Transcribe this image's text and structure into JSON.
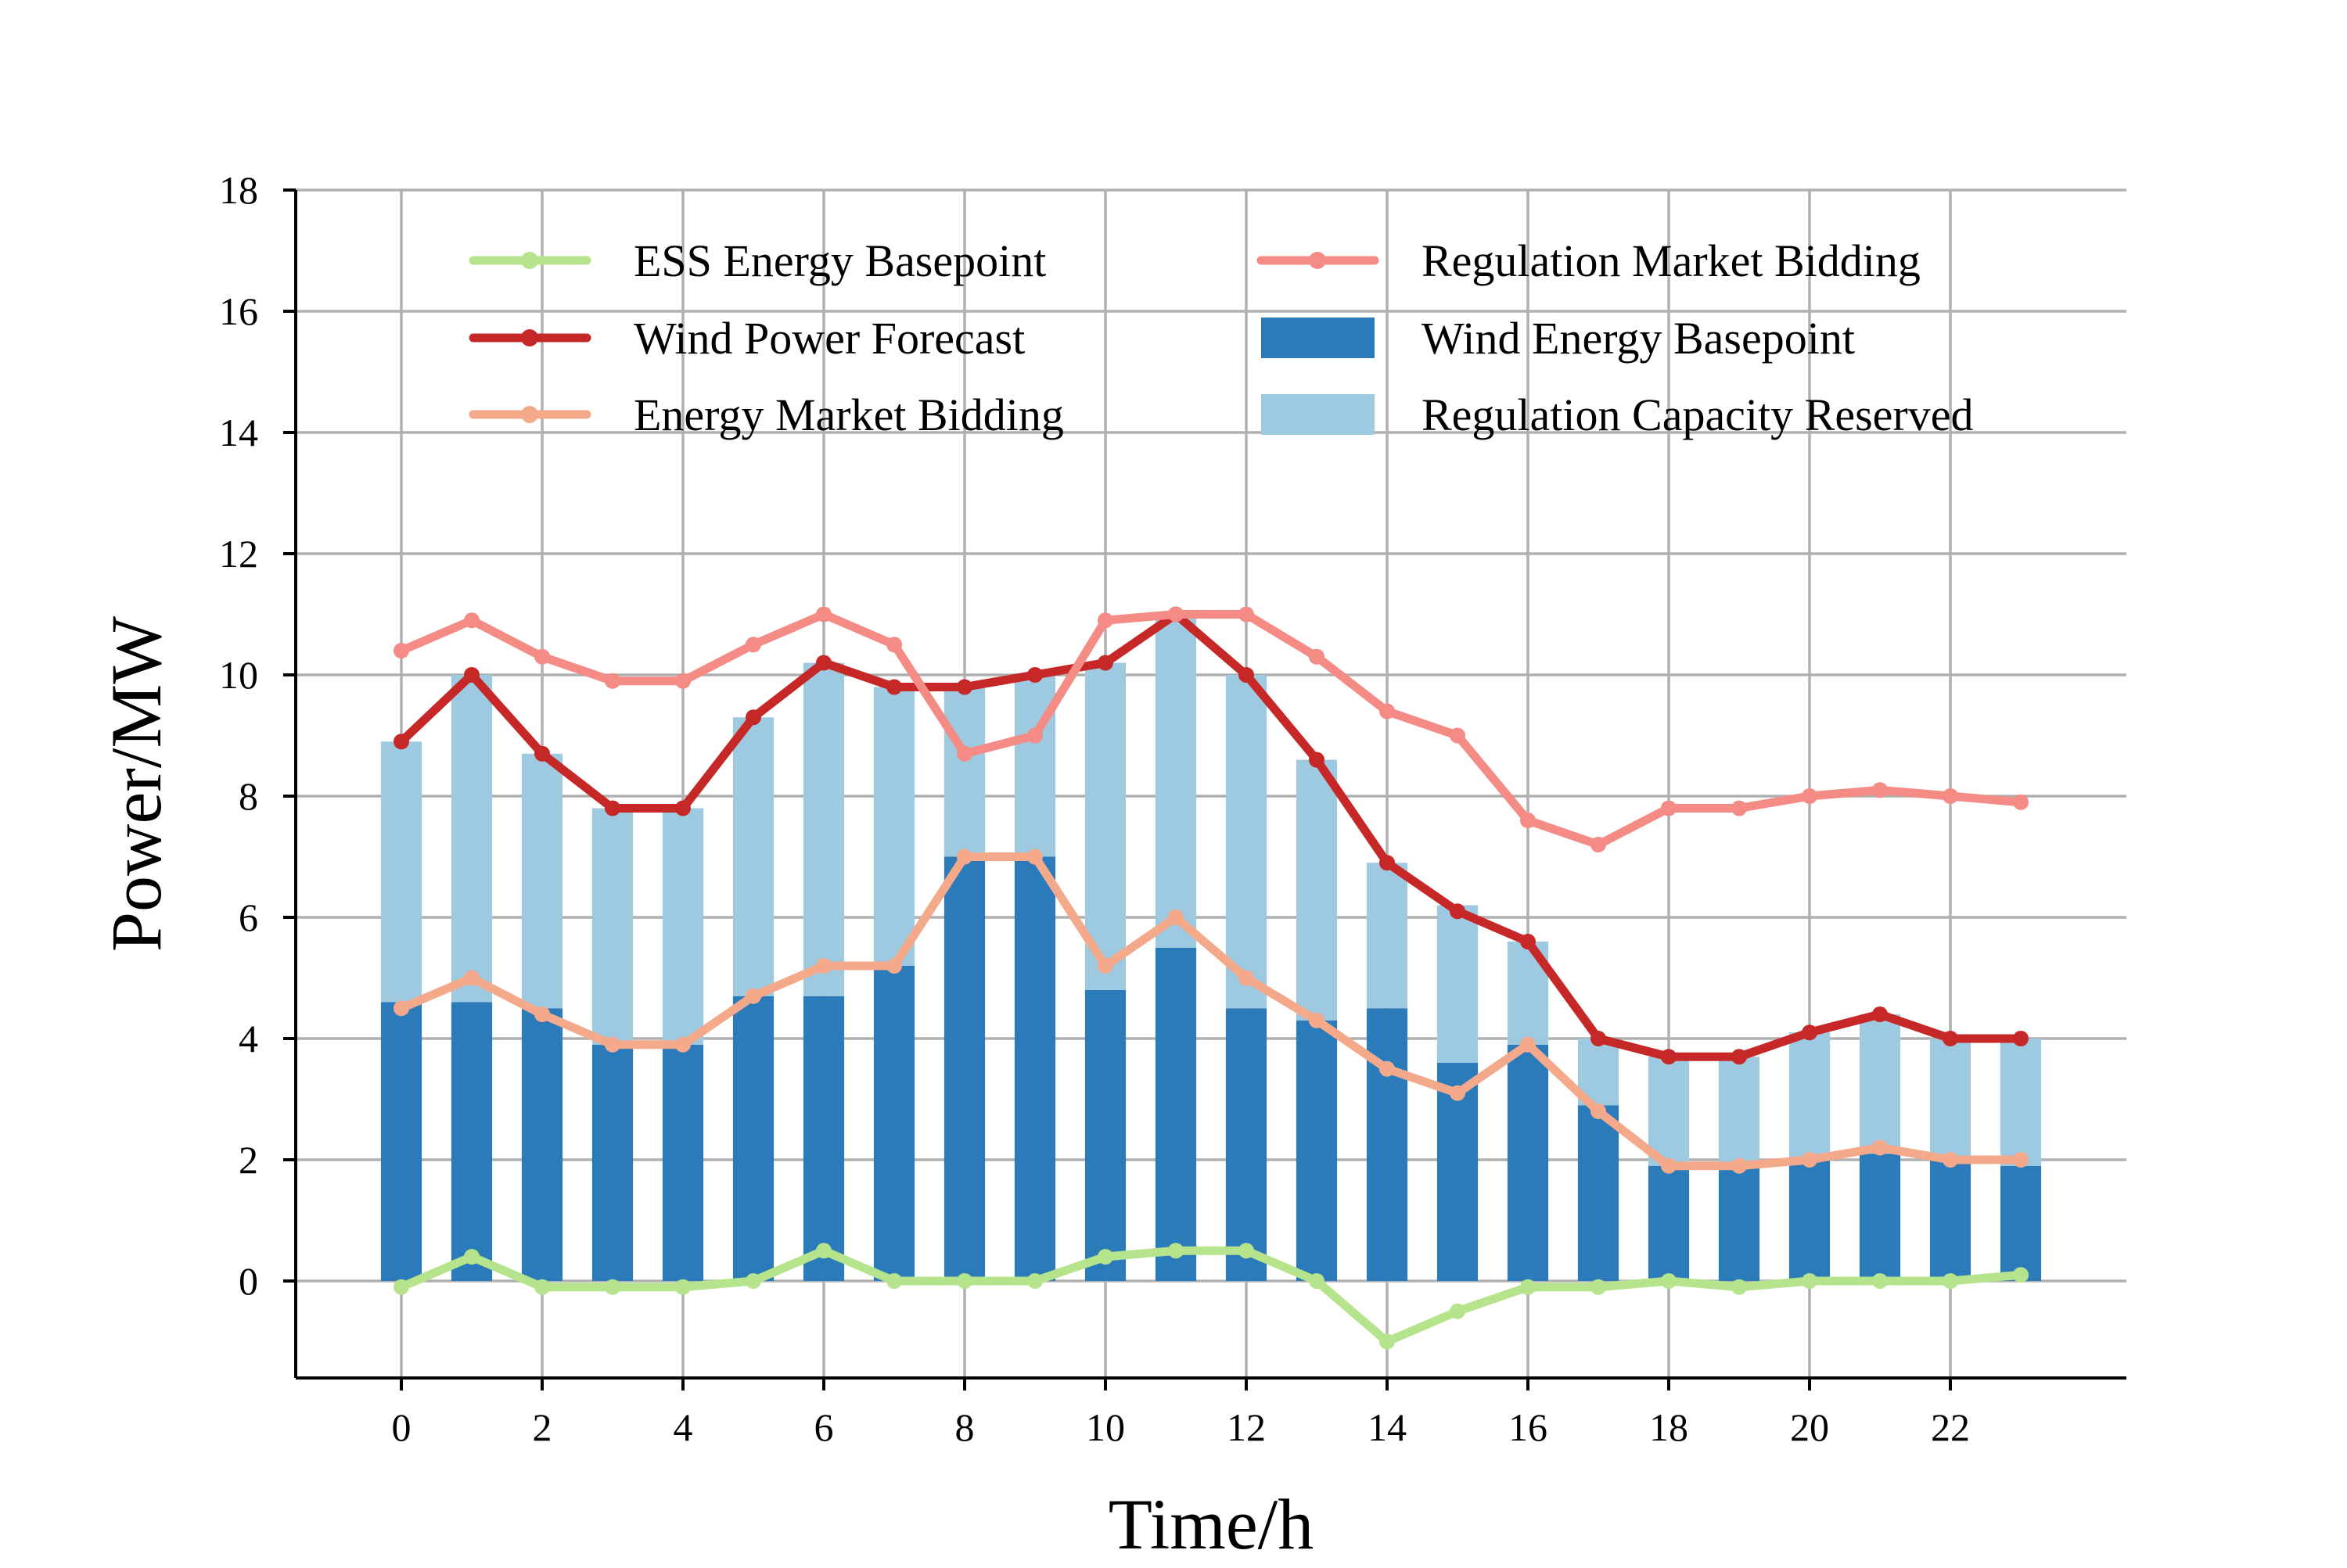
{
  "chart_data": {
    "type": "bar",
    "xlabel": "Time/h",
    "ylabel": "Power/MW",
    "xlim": [
      -1.5,
      24.5
    ],
    "ylim": [
      -1.6,
      18
    ],
    "x_ticks": [
      0,
      2,
      4,
      6,
      8,
      10,
      12,
      14,
      16,
      18,
      20,
      22
    ],
    "y_ticks": [
      0,
      2,
      4,
      6,
      8,
      10,
      12,
      14,
      16,
      18
    ],
    "grid": true,
    "legend_position": "top",
    "x": [
      0,
      1,
      2,
      3,
      4,
      5,
      6,
      7,
      8,
      9,
      10,
      11,
      12,
      13,
      14,
      15,
      16,
      17,
      18,
      19,
      20,
      21,
      22,
      23
    ],
    "bars": [
      {
        "name": "Wind Energy Basepoint",
        "color": "#2b7bba",
        "stack_base": true,
        "values": [
          4.6,
          4.6,
          4.5,
          3.9,
          3.9,
          4.7,
          4.7,
          5.2,
          7.0,
          7.0,
          4.8,
          5.5,
          4.5,
          4.3,
          4.5,
          3.6,
          3.9,
          2.9,
          1.9,
          1.9,
          2.0,
          2.1,
          2.0,
          1.9
        ]
      },
      {
        "name": "Regulation Capacity Reserved",
        "color": "#9ecae1",
        "stacked_on": "Wind Energy Basepoint",
        "values": [
          4.3,
          5.4,
          4.2,
          3.9,
          3.9,
          4.6,
          5.5,
          4.6,
          2.8,
          3.0,
          5.4,
          5.5,
          5.5,
          4.3,
          2.4,
          2.6,
          1.7,
          1.1,
          1.8,
          1.8,
          2.1,
          2.3,
          2.0,
          2.1
        ]
      }
    ],
    "lines": [
      {
        "name": "ESS Energy Basepoint",
        "color": "#b5e48c",
        "values": [
          -0.1,
          0.4,
          -0.1,
          -0.1,
          -0.1,
          0.0,
          0.5,
          0.0,
          0.0,
          0.0,
          0.4,
          0.5,
          0.5,
          0.0,
          -1.0,
          -0.5,
          -0.1,
          -0.1,
          0.0,
          -0.1,
          0.0,
          0.0,
          0.0,
          0.1
        ]
      },
      {
        "name": "Wind Power Forecast",
        "color": "#c62828",
        "values": [
          8.9,
          10.0,
          8.7,
          7.8,
          7.8,
          9.3,
          10.2,
          9.8,
          9.8,
          10.0,
          10.2,
          11.0,
          10.0,
          8.6,
          6.9,
          6.1,
          5.6,
          4.0,
          3.7,
          3.7,
          4.1,
          4.4,
          4.0,
          4.0
        ]
      },
      {
        "name": "Energy Market Bidding",
        "color": "#f4a98a",
        "values": [
          4.5,
          5.0,
          4.4,
          3.9,
          3.9,
          4.7,
          5.2,
          5.2,
          7.0,
          7.0,
          5.2,
          6.0,
          5.0,
          4.3,
          3.5,
          3.1,
          3.9,
          2.8,
          1.9,
          1.9,
          2.0,
          2.2,
          2.0,
          2.0
        ]
      },
      {
        "name": "Regulation Market Bidding",
        "color": "#f48b85",
        "values": [
          10.4,
          10.9,
          10.3,
          9.9,
          9.9,
          10.5,
          11.0,
          10.5,
          8.7,
          9.0,
          10.9,
          11.0,
          11.0,
          10.3,
          9.4,
          9.0,
          7.6,
          7.2,
          7.8,
          7.8,
          8.0,
          8.1,
          8.0,
          7.9
        ]
      }
    ],
    "legend": [
      {
        "label": "ESS Energy Basepoint",
        "kind": "line",
        "color": "#b5e48c"
      },
      {
        "label": "Regulation Market Bidding",
        "kind": "line",
        "color": "#f48b85"
      },
      {
        "label": "Wind Power Forecast",
        "kind": "line",
        "color": "#c62828"
      },
      {
        "label": "Wind Energy Basepoint",
        "kind": "bar",
        "color": "#2b7bba"
      },
      {
        "label": "Energy Market Bidding",
        "kind": "line",
        "color": "#f4a98a"
      },
      {
        "label": "Regulation Capacity Reserved",
        "kind": "bar",
        "color": "#9ecae1"
      }
    ]
  }
}
